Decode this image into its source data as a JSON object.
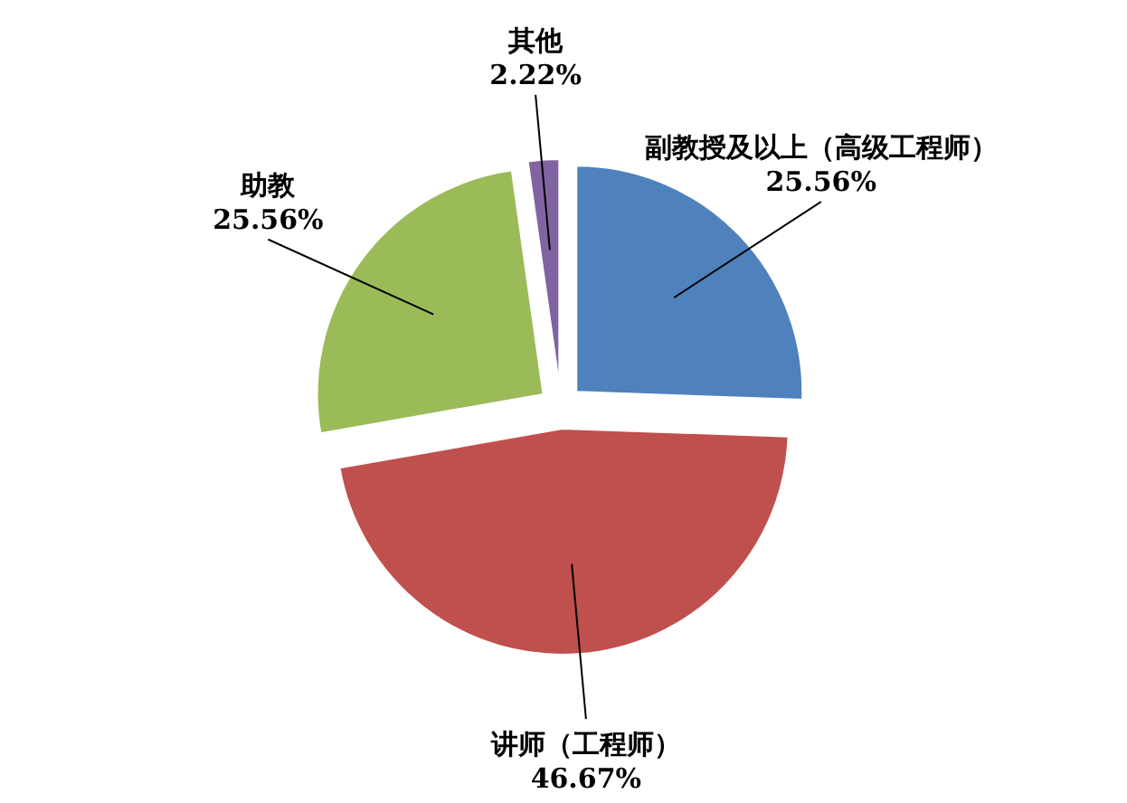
{
  "chart_data": {
    "type": "pie",
    "categories": [
      "副教授及以上（高级工程师）",
      "讲师（工程师）",
      "助教",
      "其他"
    ],
    "values": [
      25.56,
      46.67,
      25.56,
      2.22
    ],
    "value_labels": [
      "25.56%",
      "46.67%",
      "25.56%",
      "2.22%"
    ],
    "colors": [
      "#4f81bd",
      "#c0504d",
      "#9bbb59",
      "#8064a2"
    ]
  }
}
